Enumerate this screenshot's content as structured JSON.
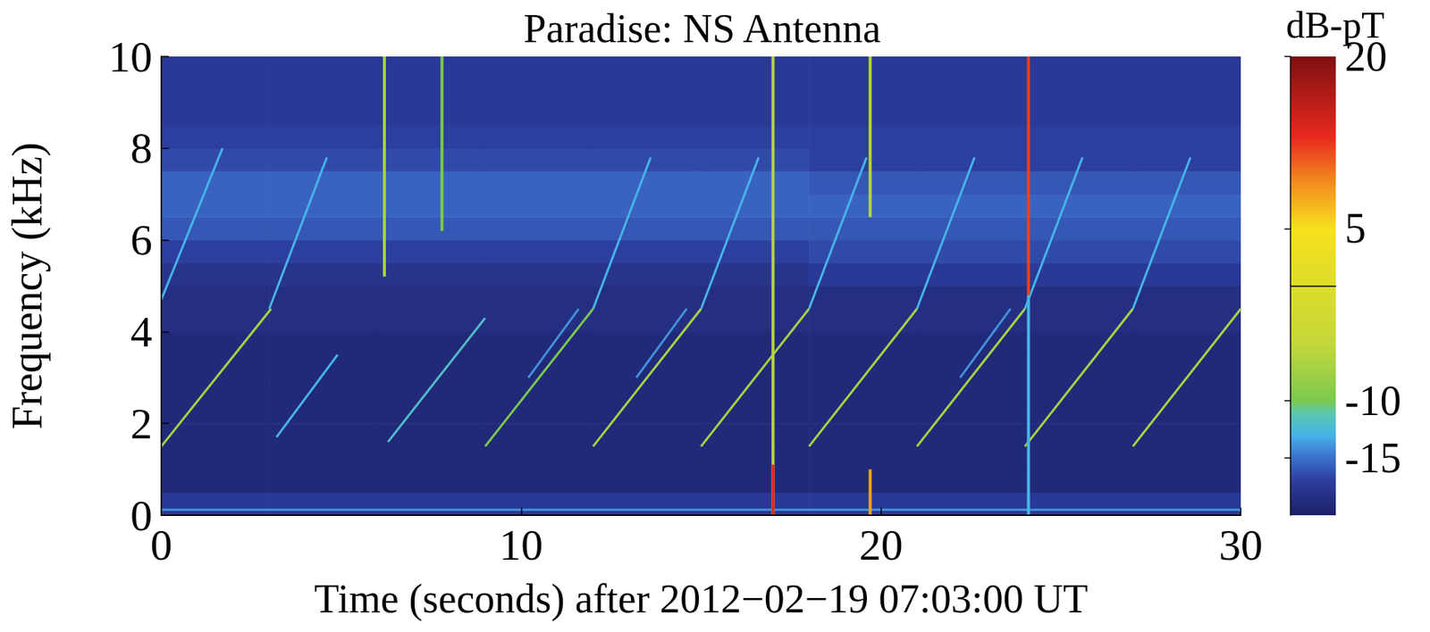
{
  "chart_data": {
    "type": "heatmap",
    "title": "Paradise: NS Antenna",
    "x_label": "Time (seconds) after 2012−02−19 07:03:00 UT",
    "y_label": "Frequency (kHz)",
    "xlim": [
      0,
      30
    ],
    "xticks": [
      0,
      10,
      20,
      30
    ],
    "ylim": [
      0,
      10
    ],
    "yticks": [
      0,
      2,
      4,
      6,
      8,
      10
    ],
    "time_edges": [
      0,
      3,
      6,
      9,
      12,
      15,
      18,
      21,
      24,
      27,
      30
    ],
    "freq_edges": [
      0,
      0.5,
      1,
      1.5,
      2,
      2.5,
      3,
      3.5,
      4,
      4.5,
      5,
      5.5,
      6,
      6.5,
      7,
      7.5,
      8,
      8.5,
      9,
      9.5,
      10
    ],
    "cells": [
      [
        -17.5,
        -17.5,
        -17.5,
        -17.5,
        -17.5,
        -17.5,
        -17.5,
        -17.5,
        -17.5,
        -17.5
      ],
      [
        -19,
        -19,
        -19,
        -19,
        -19,
        -19,
        -19,
        -19,
        -19,
        -19
      ],
      [
        -19,
        -19,
        -19,
        -19,
        -19,
        -19,
        -19,
        -19,
        -19,
        -19
      ],
      [
        -19,
        -19,
        -19,
        -19,
        -19,
        -19,
        -19,
        -19,
        -19,
        -19
      ],
      [
        -19,
        -19,
        -19,
        -19,
        -19,
        -19,
        -19,
        -19,
        -19,
        -19
      ],
      [
        -19,
        -19,
        -19,
        -19,
        -19,
        -19,
        -19,
        -19,
        -19,
        -19
      ],
      [
        -19,
        -19,
        -19,
        -19,
        -19,
        -19,
        -19,
        -19,
        -19,
        -19
      ],
      [
        -19,
        -19,
        -19,
        -19,
        -19,
        -19,
        -19,
        -19,
        -19,
        -19
      ],
      [
        -18.5,
        -18.5,
        -18.5,
        -18.5,
        -18.5,
        -18.5,
        -18.5,
        -18.5,
        -18.5,
        -18.5
      ],
      [
        -18.5,
        -18.5,
        -18.5,
        -18.5,
        -18.5,
        -18.5,
        -18.5,
        -18.5,
        -18.5,
        -18.5
      ],
      [
        -18,
        -18,
        -18,
        -18,
        -18,
        -18,
        -17.5,
        -17.5,
        -17.5,
        -17.5
      ],
      [
        -17,
        -17,
        -17,
        -17,
        -17,
        -17,
        -16.5,
        -16.5,
        -16.5,
        -16.5
      ],
      [
        -16,
        -16,
        -16,
        -16,
        -16,
        -16,
        -16,
        -16,
        -16,
        -16
      ],
      [
        -15.5,
        -15.5,
        -15.5,
        -15.5,
        -15.5,
        -15.5,
        -15.5,
        -15.5,
        -15.5,
        -15.5
      ],
      [
        -15.5,
        -15.5,
        -15.5,
        -15.5,
        -15.5,
        -15.5,
        -16,
        -16,
        -16,
        -16
      ],
      [
        -16.5,
        -16.5,
        -16.5,
        -16.5,
        -16.5,
        -16.5,
        -17,
        -17,
        -17,
        -17
      ],
      [
        -17,
        -17,
        -17,
        -17,
        -17,
        -17,
        -17,
        -17,
        -17,
        -17
      ],
      [
        -17.5,
        -17.5,
        -17.5,
        -17.5,
        -17.5,
        -17.5,
        -17.5,
        -17.5,
        -17.5,
        -17.5
      ],
      [
        -17.5,
        -17.5,
        -17.5,
        -17.5,
        -17.5,
        -17.5,
        -17.5,
        -17.5,
        -17.5,
        -17.5
      ],
      [
        -17.5,
        -17.5,
        -17.5,
        -17.5,
        -17.5,
        -17.5,
        -17.5,
        -17.5,
        -17.5,
        -17.5
      ]
    ],
    "colorbar": {
      "label": "dB-pT",
      "range": [
        -20,
        20
      ],
      "ticks": [
        20,
        5,
        -10,
        -15
      ]
    },
    "series": [
      {
        "type": "line",
        "x": [
          0,
          30
        ],
        "values": [
          0.12,
          0.12
        ],
        "level": -14
      },
      {
        "type": "line",
        "x": [
          0,
          3.05
        ],
        "values": [
          1.5,
          4.5
        ],
        "level": -7
      },
      {
        "type": "line",
        "x": [
          3.2,
          4.9
        ],
        "values": [
          1.7,
          3.5
        ],
        "level": -13
      },
      {
        "type": "line",
        "x": [
          6.3,
          9.0
        ],
        "values": [
          1.6,
          4.3
        ],
        "level": -12
      },
      {
        "type": "line",
        "x": [
          9.0,
          12.0
        ],
        "values": [
          1.5,
          4.5
        ],
        "level": -10
      },
      {
        "type": "line",
        "x": [
          12.0,
          15.0
        ],
        "values": [
          1.5,
          4.5
        ],
        "level": -7
      },
      {
        "type": "line",
        "x": [
          15.0,
          18.0
        ],
        "values": [
          1.5,
          4.5
        ],
        "level": -7
      },
      {
        "type": "line",
        "x": [
          18.0,
          21.0
        ],
        "values": [
          1.5,
          4.5
        ],
        "level": -7
      },
      {
        "type": "line",
        "x": [
          21.0,
          24.0
        ],
        "values": [
          1.5,
          4.5
        ],
        "level": -7
      },
      {
        "type": "line",
        "x": [
          24.0,
          27.0
        ],
        "values": [
          1.5,
          4.5
        ],
        "level": -7
      },
      {
        "type": "line",
        "x": [
          27.0,
          30.0
        ],
        "values": [
          1.5,
          4.5
        ],
        "level": -7
      },
      {
        "type": "line",
        "x": [
          3.0,
          4.6
        ],
        "values": [
          4.5,
          7.8
        ],
        "level": -13
      },
      {
        "type": "line",
        "x": [
          12.0,
          13.6
        ],
        "values": [
          4.5,
          7.8
        ],
        "level": -13
      },
      {
        "type": "line",
        "x": [
          15.0,
          16.6
        ],
        "values": [
          4.5,
          7.8
        ],
        "level": -13
      },
      {
        "type": "line",
        "x": [
          18.0,
          19.6
        ],
        "values": [
          4.5,
          7.8
        ],
        "level": -13
      },
      {
        "type": "line",
        "x": [
          21.0,
          22.6
        ],
        "values": [
          4.5,
          7.8
        ],
        "level": -13
      },
      {
        "type": "line",
        "x": [
          24.0,
          25.6
        ],
        "values": [
          4.5,
          7.8
        ],
        "level": -13
      },
      {
        "type": "line",
        "x": [
          27.0,
          28.6
        ],
        "values": [
          4.5,
          7.8
        ],
        "level": -13
      },
      {
        "type": "line",
        "x": [
          0.0,
          1.7
        ],
        "values": [
          4.7,
          8.0
        ],
        "level": -13
      },
      {
        "type": "line",
        "x": [
          10.2,
          11.6
        ],
        "values": [
          3.0,
          4.5
        ],
        "level": -14
      },
      {
        "type": "line",
        "x": [
          13.2,
          14.6
        ],
        "values": [
          3.0,
          4.5
        ],
        "level": -14
      },
      {
        "type": "line",
        "x": [
          22.2,
          23.6
        ],
        "values": [
          3.0,
          4.5
        ],
        "level": -14
      },
      {
        "type": "line",
        "x": [
          6.2,
          6.2
        ],
        "values": [
          5.2,
          10
        ],
        "level": -7
      },
      {
        "type": "line",
        "x": [
          7.8,
          7.8
        ],
        "values": [
          6.2,
          10
        ],
        "level": -10
      },
      {
        "type": "line",
        "x": [
          17.0,
          17.0
        ],
        "values": [
          0,
          10
        ],
        "level": -6
      },
      {
        "type": "line",
        "x": [
          17.0,
          17.0
        ],
        "values": [
          0,
          1.1
        ],
        "level": 13
      },
      {
        "type": "line",
        "x": [
          19.7,
          19.7
        ],
        "values": [
          6.5,
          10
        ],
        "level": -6
      },
      {
        "type": "line",
        "x": [
          19.7,
          19.7
        ],
        "values": [
          0,
          1.0
        ],
        "level": 8
      },
      {
        "type": "line",
        "x": [
          24.1,
          24.1
        ],
        "values": [
          4.8,
          10
        ],
        "level": 12
      },
      {
        "type": "line",
        "x": [
          24.1,
          24.1
        ],
        "values": [
          0,
          4.8
        ],
        "level": -13
      }
    ]
  }
}
